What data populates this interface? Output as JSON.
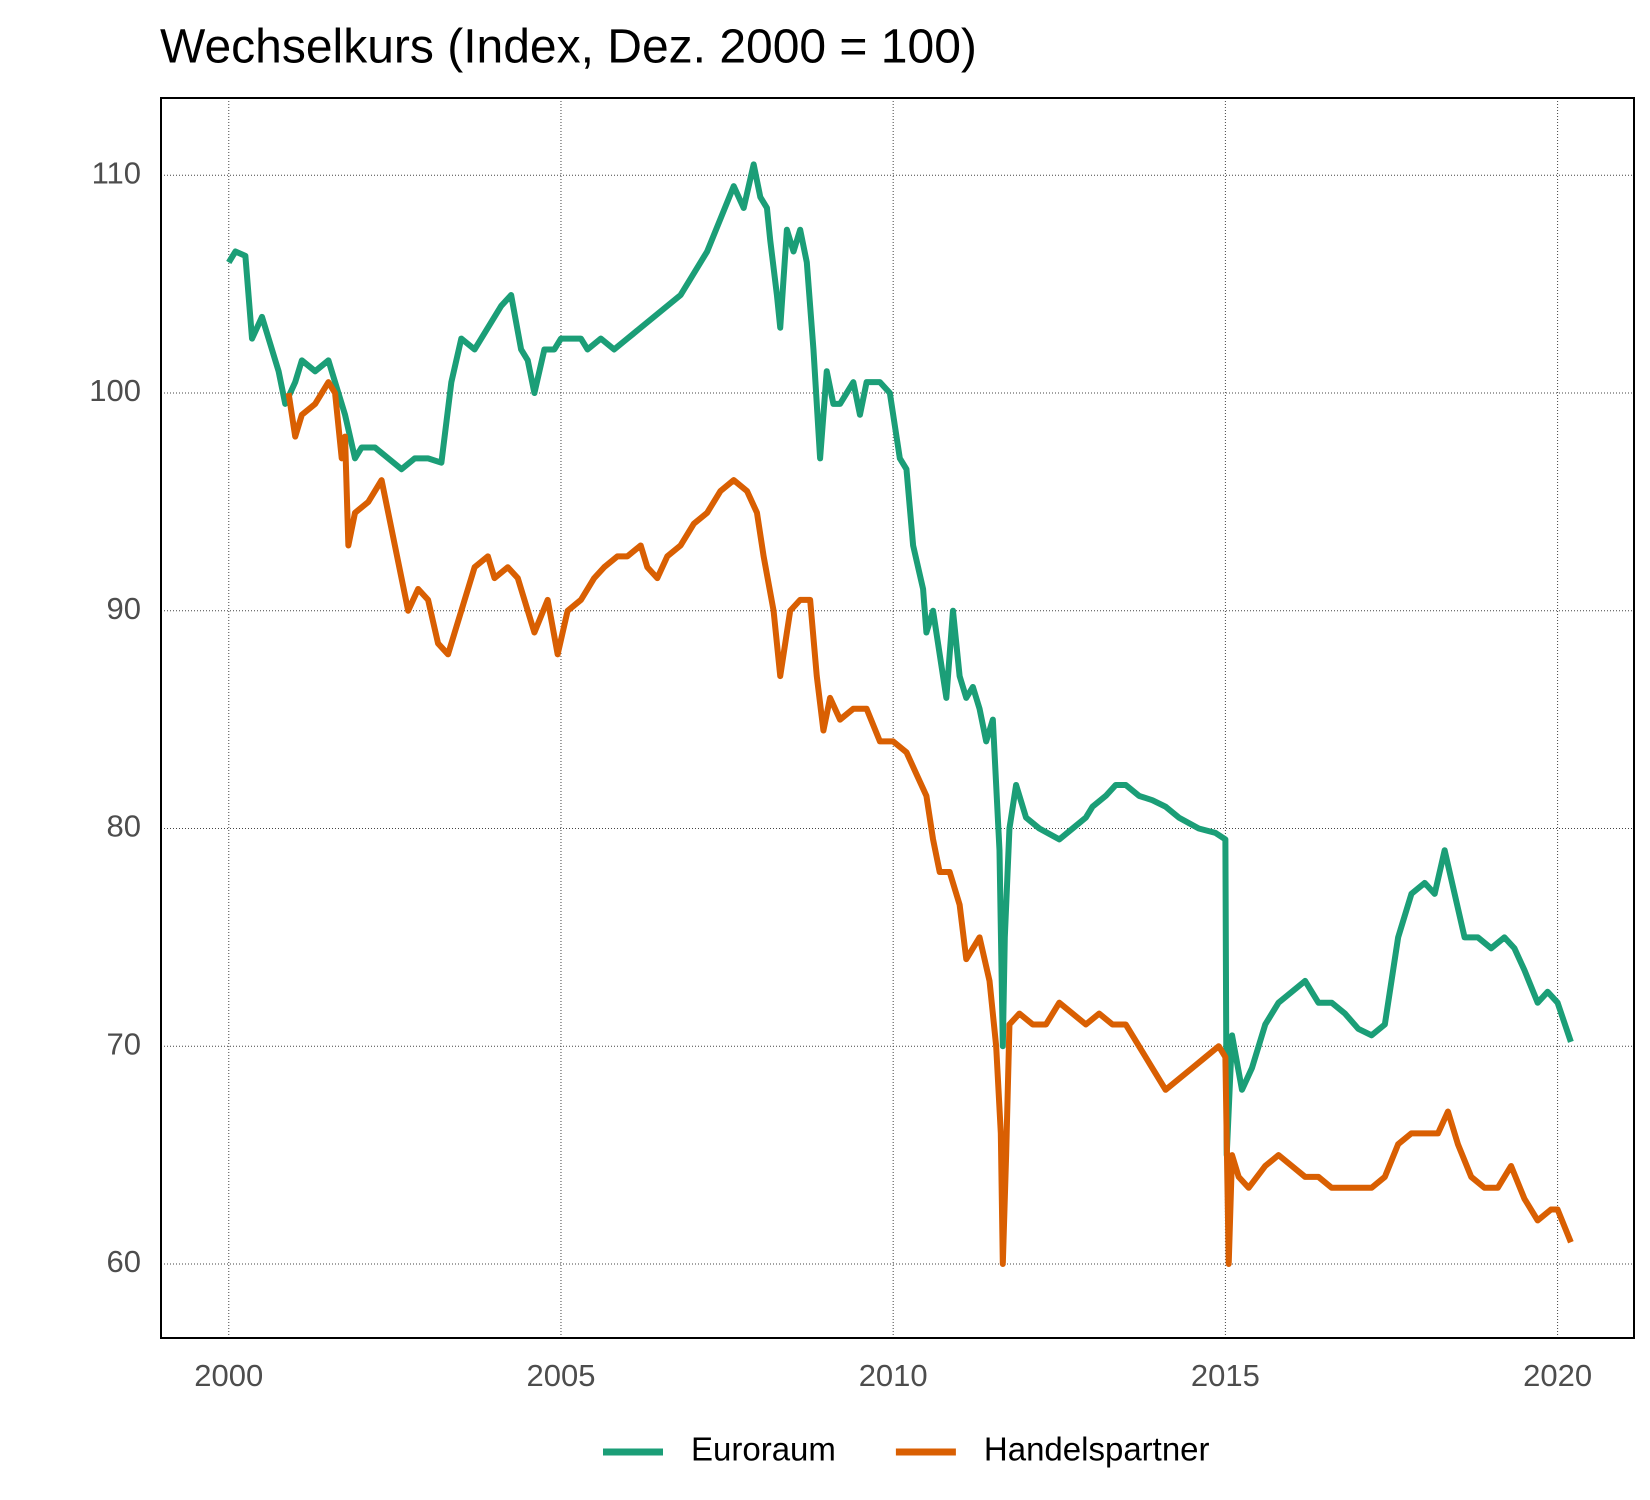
{
  "chart_data": {
    "type": "line",
    "title": "Wechselkurs (Index, Dez. 2000 = 100)",
    "xlim": [
      1998.98,
      2021.15
    ],
    "xticks": [
      2000,
      2005,
      2010,
      2015,
      2020
    ],
    "ylim": [
      56.6,
      113.55
    ],
    "yticks": [
      60,
      70,
      80,
      90,
      100,
      110
    ],
    "grid": true,
    "legend": "bottom",
    "series": [
      {
        "name": "Euroraum",
        "color": "#1b9e77",
        "x": [
          2000.0,
          2000.1,
          2000.25,
          2000.35,
          2000.5,
          2000.6,
          2000.75,
          2000.85,
          2001.0,
          2001.1,
          2001.3,
          2001.5,
          2001.6,
          2001.75,
          2001.9,
          2002.0,
          2002.2,
          2002.4,
          2002.6,
          2002.8,
          2003.0,
          2003.2,
          2003.35,
          2003.5,
          2003.7,
          2003.9,
          2004.1,
          2004.25,
          2004.4,
          2004.5,
          2004.6,
          2004.75,
          2004.9,
          2005.0,
          2005.15,
          2005.3,
          2005.4,
          2005.6,
          2005.8,
          2006.0,
          2006.2,
          2006.4,
          2006.6,
          2006.8,
          2007.0,
          2007.2,
          2007.4,
          2007.6,
          2007.75,
          2007.9,
          2008.0,
          2008.1,
          2008.15,
          2008.25,
          2008.3,
          2008.4,
          2008.5,
          2008.6,
          2008.7,
          2008.8,
          2008.9,
          2009.0,
          2009.1,
          2009.2,
          2009.4,
          2009.5,
          2009.6,
          2009.8,
          2009.95,
          2010.1,
          2010.2,
          2010.3,
          2010.45,
          2010.5,
          2010.6,
          2010.8,
          2010.9,
          2011.0,
          2011.1,
          2011.2,
          2011.3,
          2011.4,
          2011.5,
          2011.6,
          2011.65,
          2011.68,
          2011.75,
          2011.85,
          2012.0,
          2012.2,
          2012.5,
          2012.7,
          2012.9,
          2013.0,
          2013.2,
          2013.35,
          2013.5,
          2013.7,
          2013.9,
          2014.1,
          2014.3,
          2014.6,
          2014.85,
          2015.0,
          2015.02,
          2015.1,
          2015.25,
          2015.4,
          2015.6,
          2015.8,
          2016.0,
          2016.2,
          2016.4,
          2016.6,
          2016.8,
          2017.0,
          2017.2,
          2017.4,
          2017.6,
          2017.8,
          2018.0,
          2018.15,
          2018.3,
          2018.45,
          2018.6,
          2018.8,
          2019.0,
          2019.2,
          2019.35,
          2019.5,
          2019.7,
          2019.85,
          2020.0,
          2020.2
        ],
        "values": [
          106,
          106.5,
          106.3,
          102.5,
          103.5,
          102.5,
          101,
          99.5,
          100.5,
          101.5,
          101,
          101.5,
          100.5,
          99,
          97,
          97.5,
          97.5,
          97,
          96.5,
          97,
          97,
          96.8,
          100.5,
          102.5,
          102,
          103,
          104,
          104.5,
          102,
          101.5,
          100,
          102,
          102,
          102.5,
          102.5,
          102.5,
          102,
          102.5,
          102,
          102.5,
          103,
          103.5,
          104,
          104.5,
          105.5,
          106.5,
          108,
          109.5,
          108.5,
          110.5,
          109,
          108.5,
          107,
          104.5,
          103,
          107.5,
          106.5,
          107.5,
          106,
          102,
          97,
          101,
          99.5,
          99.5,
          100.5,
          99,
          100.5,
          100.5,
          100,
          97,
          96.5,
          93,
          91,
          89,
          90,
          86,
          90,
          87,
          86,
          86.5,
          85.5,
          84,
          85,
          79,
          70,
          75,
          80,
          82,
          80.5,
          80,
          79.5,
          80,
          80.5,
          81,
          81.5,
          82,
          82,
          81.5,
          81.3,
          81,
          80.5,
          80,
          79.8,
          79.5,
          65,
          70.5,
          68,
          69,
          71,
          72,
          72.5,
          73,
          72,
          72,
          71.5,
          70.8,
          70.5,
          71,
          75,
          77,
          77.5,
          77,
          79,
          77,
          75,
          75,
          74.5,
          75,
          74.5,
          73.5,
          72,
          72.5,
          72,
          70.2
        ]
      },
      {
        "name": "Handelspartner",
        "color": "#d95f02",
        "x": [
          2000.9,
          2001.0,
          2001.1,
          2001.3,
          2001.5,
          2001.6,
          2001.7,
          2001.75,
          2001.8,
          2001.9,
          2002.1,
          2002.3,
          2002.5,
          2002.6,
          2002.7,
          2002.85,
          2003.0,
          2003.15,
          2003.3,
          2003.5,
          2003.7,
          2003.9,
          2004.0,
          2004.2,
          2004.35,
          2004.5,
          2004.6,
          2004.8,
          2004.95,
          2005.1,
          2005.3,
          2005.5,
          2005.65,
          2005.85,
          2006.0,
          2006.2,
          2006.3,
          2006.45,
          2006.6,
          2006.8,
          2007.0,
          2007.2,
          2007.4,
          2007.6,
          2007.8,
          2007.95,
          2008.05,
          2008.2,
          2008.3,
          2008.45,
          2008.6,
          2008.75,
          2008.85,
          2008.95,
          2009.05,
          2009.2,
          2009.4,
          2009.6,
          2009.8,
          2010.0,
          2010.2,
          2010.35,
          2010.5,
          2010.6,
          2010.7,
          2010.85,
          2011.0,
          2011.1,
          2011.3,
          2011.45,
          2011.55,
          2011.62,
          2011.65,
          2011.7,
          2011.75,
          2011.9,
          2012.1,
          2012.3,
          2012.5,
          2012.7,
          2012.9,
          2013.1,
          2013.3,
          2013.5,
          2013.7,
          2013.9,
          2014.1,
          2014.3,
          2014.5,
          2014.7,
          2014.9,
          2015.0,
          2015.05,
          2015.1,
          2015.2,
          2015.35,
          2015.6,
          2015.8,
          2016.0,
          2016.2,
          2016.4,
          2016.6,
          2016.8,
          2017.0,
          2017.2,
          2017.4,
          2017.6,
          2017.8,
          2018.0,
          2018.2,
          2018.35,
          2018.5,
          2018.7,
          2018.9,
          2019.1,
          2019.3,
          2019.5,
          2019.7,
          2019.9,
          2020.0,
          2020.2
        ],
        "values": [
          100,
          98,
          99,
          99.5,
          100.5,
          100,
          97,
          98,
          93,
          94.5,
          95,
          96,
          93,
          91.5,
          90,
          91,
          90.5,
          88.5,
          88,
          90,
          92,
          92.5,
          91.5,
          92,
          91.5,
          90,
          89,
          90.5,
          88,
          90,
          90.5,
          91.5,
          92,
          92.5,
          92.5,
          93,
          92,
          91.5,
          92.5,
          93,
          94,
          94.5,
          95.5,
          96,
          95.5,
          94.5,
          92.5,
          90,
          87,
          90,
          90.5,
          90.5,
          87,
          84.5,
          86,
          85,
          85.5,
          85.5,
          84,
          84,
          83.5,
          82.5,
          81.5,
          79.5,
          78,
          78,
          76.5,
          74,
          75,
          73,
          70,
          66,
          60,
          65,
          71,
          71.5,
          71,
          71,
          72,
          71.5,
          71,
          71.5,
          71,
          71,
          70,
          69,
          68,
          68.5,
          69,
          69.5,
          70,
          69.5,
          60,
          65,
          64,
          63.5,
          64.5,
          65,
          64.5,
          64,
          64,
          63.5,
          63.5,
          63.5,
          63.5,
          64,
          65.5,
          66,
          66,
          66,
          67,
          65.5,
          64,
          63.5,
          63.5,
          64.5,
          63,
          62,
          62.5,
          62.5,
          61
        ]
      }
    ]
  }
}
